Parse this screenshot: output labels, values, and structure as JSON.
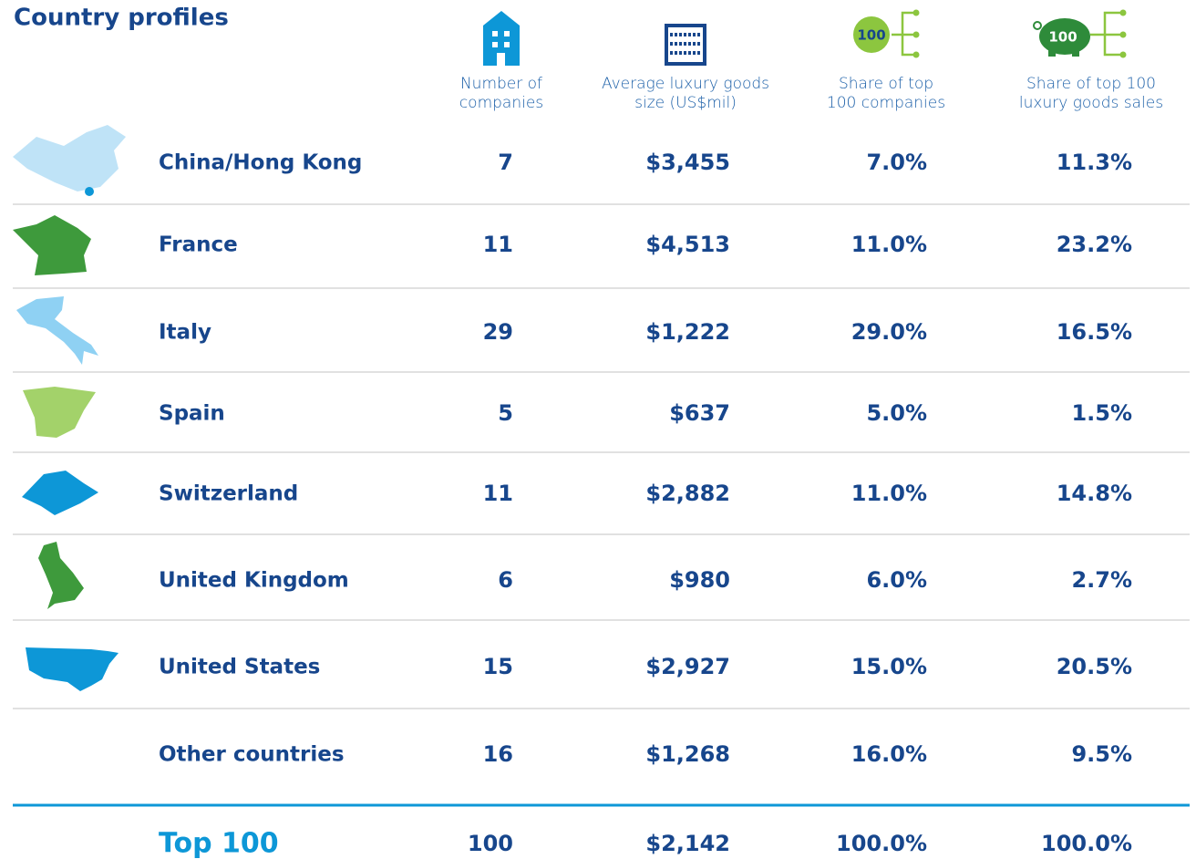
{
  "title": "Country profiles",
  "columns": [
    {
      "lines": [
        "Number of",
        "companies"
      ]
    },
    {
      "lines": [
        "Average luxury goods",
        "size (US$mil)"
      ]
    },
    {
      "lines": [
        "Share of top",
        "100 companies"
      ],
      "icon_label": "100"
    },
    {
      "lines": [
        "Share of top 100",
        "luxury goods sales"
      ],
      "icon_label": "100"
    }
  ],
  "rows": [
    [
      "China/Hong Kong",
      "7",
      "$3,455",
      "7.0%",
      "11.3%"
    ],
    [
      "France",
      "11",
      "$4,513",
      "11.0%",
      "23.2%"
    ],
    [
      "Italy",
      "29",
      "$1,222",
      "29.0%",
      "16.5%"
    ],
    [
      "Spain",
      "5",
      "$637",
      "5.0%",
      "1.5%"
    ],
    [
      "Switzerland",
      "11",
      "$2,882",
      "11.0%",
      "14.8%"
    ],
    [
      "United Kingdom",
      "6",
      "$980",
      "6.0%",
      "2.7%"
    ],
    [
      "United States",
      "15",
      "$2,927",
      "15.0%",
      "20.5%"
    ],
    [
      "Other countries",
      "16",
      "$1,268",
      "16.0%",
      "9.5%"
    ]
  ],
  "total": [
    "Top 100",
    "100",
    "$2,142",
    "100.0%",
    "100.0%"
  ]
}
